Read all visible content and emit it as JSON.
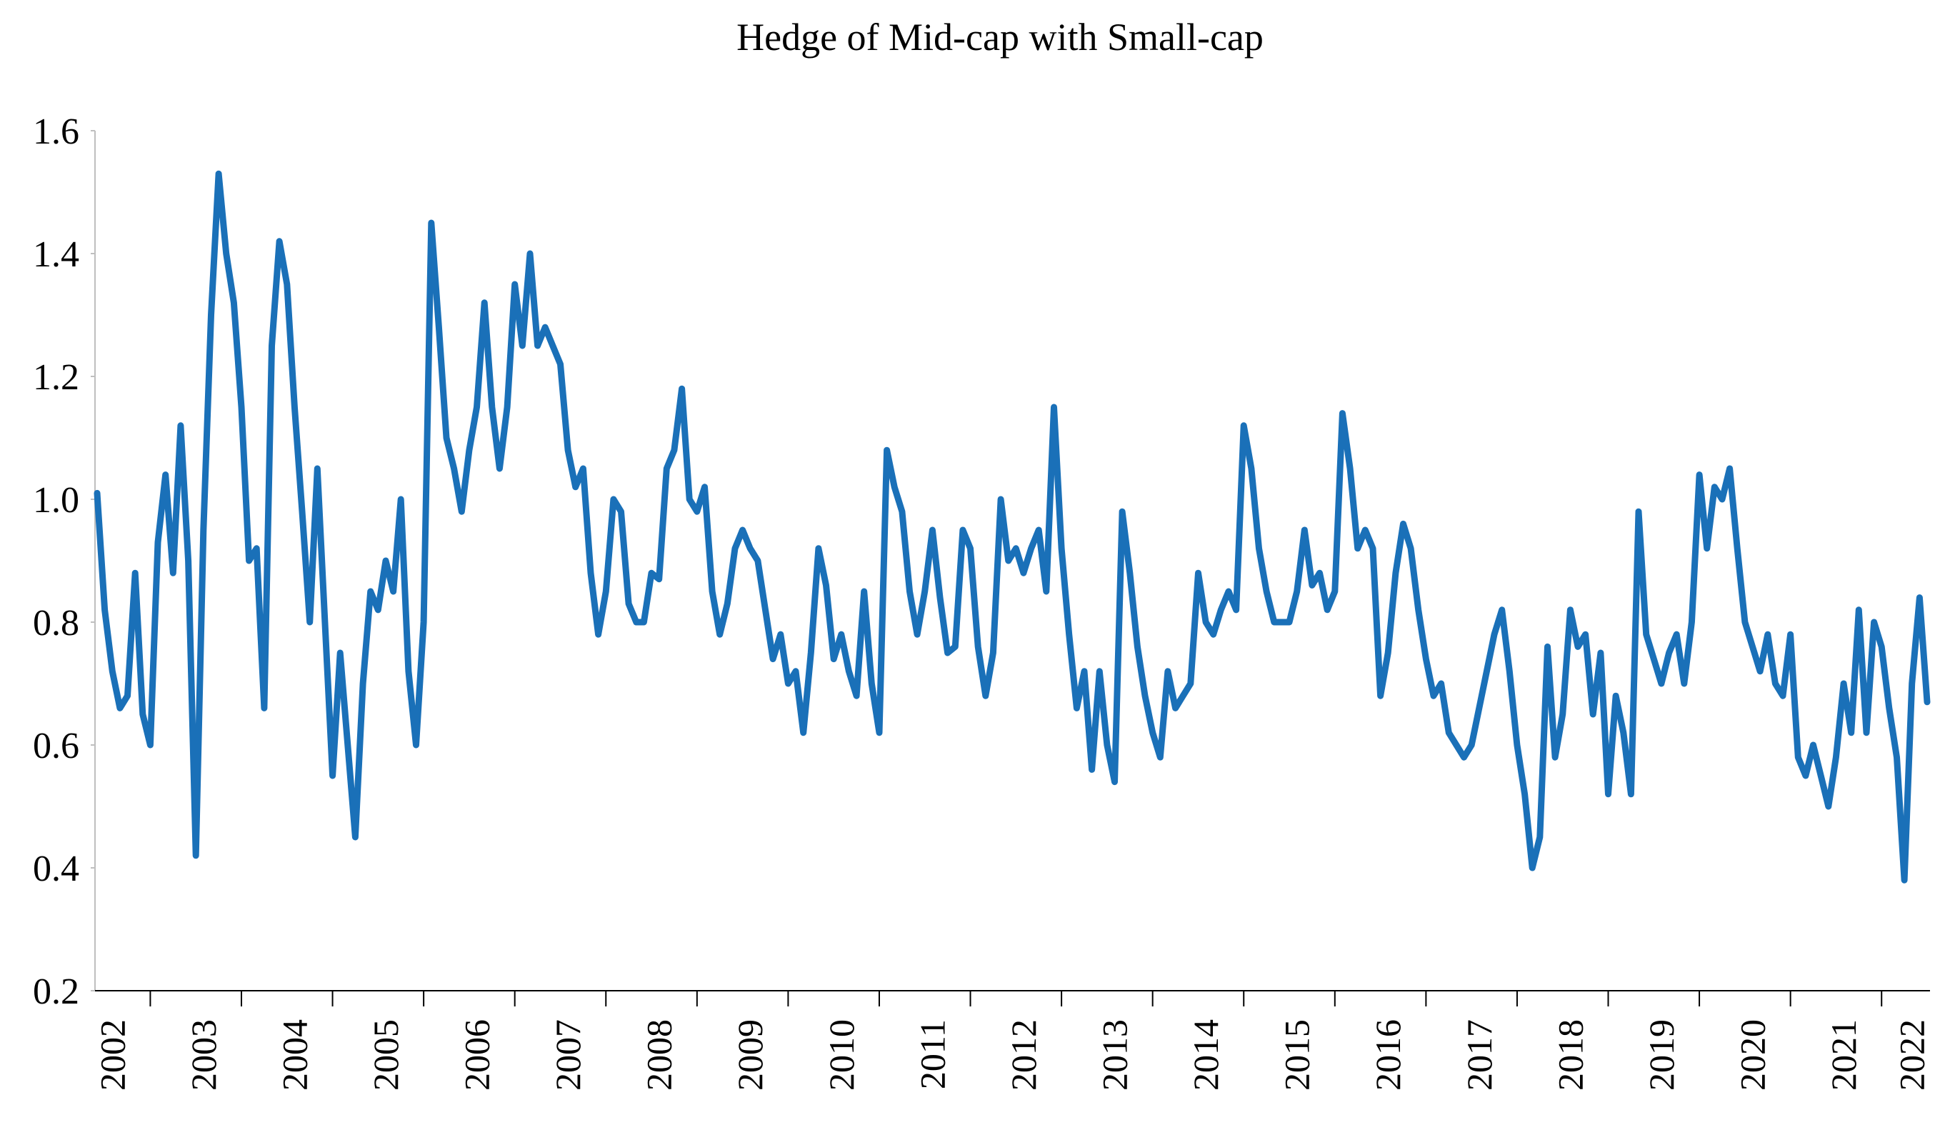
{
  "chart_data": {
    "type": "line",
    "title": "Hedge of Mid-cap with Small-cap",
    "categories": [
      null,
      null,
      "2002",
      null,
      null,
      null,
      null,
      null,
      null,
      null,
      null,
      null,
      null,
      null,
      "2003",
      null,
      null,
      null,
      null,
      null,
      null,
      null,
      null,
      null,
      null,
      null,
      "2004",
      null,
      null,
      null,
      null,
      null,
      null,
      null,
      null,
      null,
      null,
      null,
      "2005",
      null,
      null,
      null,
      null,
      null,
      null,
      null,
      null,
      null,
      null,
      null,
      "2006",
      null,
      null,
      null,
      null,
      null,
      null,
      null,
      null,
      null,
      null,
      null,
      "2007",
      null,
      null,
      null,
      null,
      null,
      null,
      null,
      null,
      null,
      null,
      null,
      "2008",
      null,
      null,
      null,
      null,
      null,
      null,
      null,
      null,
      null,
      null,
      null,
      "2009",
      null,
      null,
      null,
      null,
      null,
      null,
      null,
      null,
      null,
      null,
      null,
      "2010",
      null,
      null,
      null,
      null,
      null,
      null,
      null,
      null,
      null,
      null,
      null,
      "2011",
      null,
      null,
      null,
      null,
      null,
      null,
      null,
      null,
      null,
      null,
      null,
      "2012",
      null,
      null,
      null,
      null,
      null,
      null,
      null,
      null,
      null,
      null,
      null,
      "2013",
      null,
      null,
      null,
      null,
      null,
      null,
      null,
      null,
      null,
      null,
      null,
      "2014",
      null,
      null,
      null,
      null,
      null,
      null,
      null,
      null,
      null,
      null,
      null,
      "2015",
      null,
      null,
      null,
      null,
      null,
      null,
      null,
      null,
      null,
      null,
      null,
      "2016",
      null,
      null,
      null,
      null,
      null,
      null,
      null,
      null,
      null,
      null,
      null,
      "2017",
      null,
      null,
      null,
      null,
      null,
      null,
      null,
      null,
      null,
      null,
      null,
      "2018",
      null,
      null,
      null,
      null,
      null,
      null,
      null,
      null,
      null,
      null,
      null,
      "2019",
      null,
      null,
      null,
      null,
      null,
      null,
      null,
      null,
      null,
      null,
      null,
      "2020",
      null,
      null,
      null,
      null,
      null,
      null,
      null,
      null,
      null,
      null,
      null,
      "2021",
      null,
      null,
      null,
      null,
      null,
      null,
      null,
      null,
      "2022",
      null,
      null
    ],
    "values": [
      1.01,
      0.82,
      0.72,
      0.66,
      0.68,
      0.88,
      0.65,
      0.6,
      0.93,
      1.04,
      0.88,
      1.12,
      0.9,
      0.42,
      0.95,
      1.3,
      1.53,
      1.4,
      1.32,
      1.15,
      0.9,
      0.92,
      0.66,
      1.25,
      1.42,
      1.35,
      1.15,
      0.98,
      0.8,
      1.05,
      0.8,
      0.55,
      0.75,
      0.6,
      0.45,
      0.7,
      0.85,
      0.82,
      0.9,
      0.85,
      1.0,
      0.72,
      0.6,
      0.8,
      1.45,
      1.28,
      1.1,
      1.05,
      0.98,
      1.08,
      1.15,
      1.32,
      1.15,
      1.05,
      1.15,
      1.35,
      1.25,
      1.4,
      1.25,
      1.28,
      1.25,
      1.22,
      1.08,
      1.02,
      1.05,
      0.88,
      0.78,
      0.85,
      1.0,
      0.98,
      0.83,
      0.8,
      0.8,
      0.88,
      0.87,
      1.05,
      1.08,
      1.18,
      1.0,
      0.98,
      1.02,
      0.85,
      0.78,
      0.83,
      0.92,
      0.95,
      0.92,
      0.9,
      0.82,
      0.74,
      0.78,
      0.7,
      0.72,
      0.62,
      0.75,
      0.92,
      0.86,
      0.74,
      0.78,
      0.72,
      0.68,
      0.85,
      0.7,
      0.62,
      1.08,
      1.02,
      0.98,
      0.85,
      0.78,
      0.85,
      0.95,
      0.84,
      0.75,
      0.76,
      0.95,
      0.92,
      0.76,
      0.68,
      0.75,
      1.0,
      0.9,
      0.92,
      0.88,
      0.92,
      0.95,
      0.85,
      1.15,
      0.92,
      0.78,
      0.66,
      0.72,
      0.56,
      0.72,
      0.6,
      0.54,
      0.98,
      0.88,
      0.76,
      0.68,
      0.62,
      0.58,
      0.72,
      0.66,
      0.68,
      0.7,
      0.88,
      0.8,
      0.78,
      0.82,
      0.85,
      0.82,
      1.12,
      1.05,
      0.92,
      0.85,
      0.8,
      0.8,
      0.8,
      0.85,
      0.95,
      0.86,
      0.88,
      0.82,
      0.85,
      1.14,
      1.05,
      0.92,
      0.95,
      0.92,
      0.68,
      0.75,
      0.88,
      0.96,
      0.92,
      0.82,
      0.74,
      0.68,
      0.7,
      0.62,
      0.6,
      0.58,
      0.6,
      0.66,
      0.72,
      0.78,
      0.82,
      0.72,
      0.6,
      0.52,
      0.4,
      0.45,
      0.76,
      0.58,
      0.65,
      0.82,
      0.76,
      0.78,
      0.65,
      0.75,
      0.52,
      0.68,
      0.62,
      0.52,
      0.98,
      0.78,
      0.74,
      0.7,
      0.75,
      0.78,
      0.7,
      0.8,
      1.04,
      0.92,
      1.02,
      1.0,
      1.05,
      0.92,
      0.8,
      0.76,
      0.72,
      0.78,
      0.7,
      0.68,
      0.78,
      0.58,
      0.55,
      0.6,
      0.55,
      0.5,
      0.58,
      0.7,
      0.62,
      0.82,
      0.62,
      0.8,
      0.76,
      0.66,
      0.58,
      0.38,
      0.7,
      0.84,
      0.67
    ],
    "color": "#1a70b8",
    "ylim": [
      0.2,
      1.6
    ],
    "yticks": [
      0.2,
      0.4,
      0.6,
      0.8,
      {
        "value": 1,
        "label": "1.0"
      },
      1.2,
      1.4,
      1.6
    ]
  }
}
